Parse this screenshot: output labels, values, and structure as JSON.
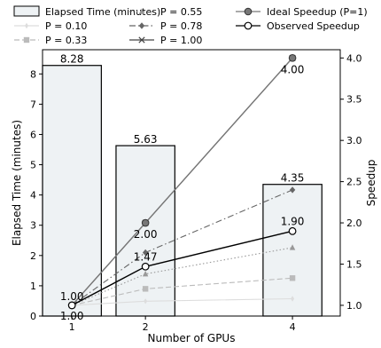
{
  "chart_data": {
    "type": "bar",
    "xlabel": "Number of GPUs",
    "ylabel_left": "Elapsed Time (minutes)",
    "ylabel_right": "Speedup",
    "categories": [
      1,
      2,
      4
    ],
    "left_axis": {
      "ylim": [
        0,
        8.8
      ],
      "ticks": [
        0,
        1,
        2,
        3,
        4,
        5,
        6,
        7,
        8
      ]
    },
    "right_axis": {
      "ylim": [
        0.87,
        4.1
      ],
      "ticks": [
        1.0,
        1.5,
        2.0,
        2.5,
        3.0,
        3.5,
        4.0
      ]
    },
    "bars": {
      "name": "Elapsed Time (minutes)",
      "values": [
        8.28,
        5.63,
        4.35
      ],
      "labels": [
        "8.28",
        "5.63",
        "4.35"
      ],
      "fill": "#eef2f4",
      "stroke": "#000000"
    },
    "speedup_series": [
      {
        "name": "P = 0.10",
        "values": [
          1.0,
          1.05,
          1.08
        ],
        "color": "#dddddd",
        "dash": "solid",
        "marker": "diamond-thin"
      },
      {
        "name": "P = 0.33",
        "values": [
          1.0,
          1.2,
          1.33
        ],
        "color": "#bbbbbb",
        "dash": "dashed",
        "marker": "square"
      },
      {
        "name": "P = 0.55",
        "values": [
          1.0,
          1.38,
          1.7
        ],
        "color": "#999999",
        "dash": "dotted",
        "marker": "triangle"
      },
      {
        "name": "P = 0.78",
        "values": [
          1.0,
          1.64,
          2.4
        ],
        "color": "#666666",
        "dash": "dashdot",
        "marker": "diamond"
      },
      {
        "name": "P = 1.00",
        "values": [
          1.0,
          2.0,
          4.0
        ],
        "color": "#444444",
        "dash": "solid",
        "marker": "x"
      },
      {
        "name": "Ideal Speedup (P=1)",
        "values": [
          1.0,
          2.0,
          4.0
        ],
        "color": "#777777",
        "dash": "solid",
        "marker": "circle-filled",
        "labels": [
          "",
          "2.00",
          "4.00"
        ]
      },
      {
        "name": "Observed Speedup",
        "values": [
          1.0,
          1.47,
          1.9
        ],
        "color": "#000000",
        "dash": "solid",
        "marker": "circle-open",
        "labels": [
          "1.00",
          "1.47",
          "1.90"
        ]
      }
    ],
    "extra_labels": [
      {
        "x": 1,
        "text": "1.00"
      }
    ],
    "legend": {
      "placement": "top",
      "entries": [
        "Elapsed Time (minutes)",
        "P = 0.10",
        "P = 0.33",
        "P = 0.55",
        "P = 0.78",
        "P = 1.00",
        "Ideal Speedup (P=1)",
        "Observed Speedup"
      ]
    },
    "grid": false
  }
}
